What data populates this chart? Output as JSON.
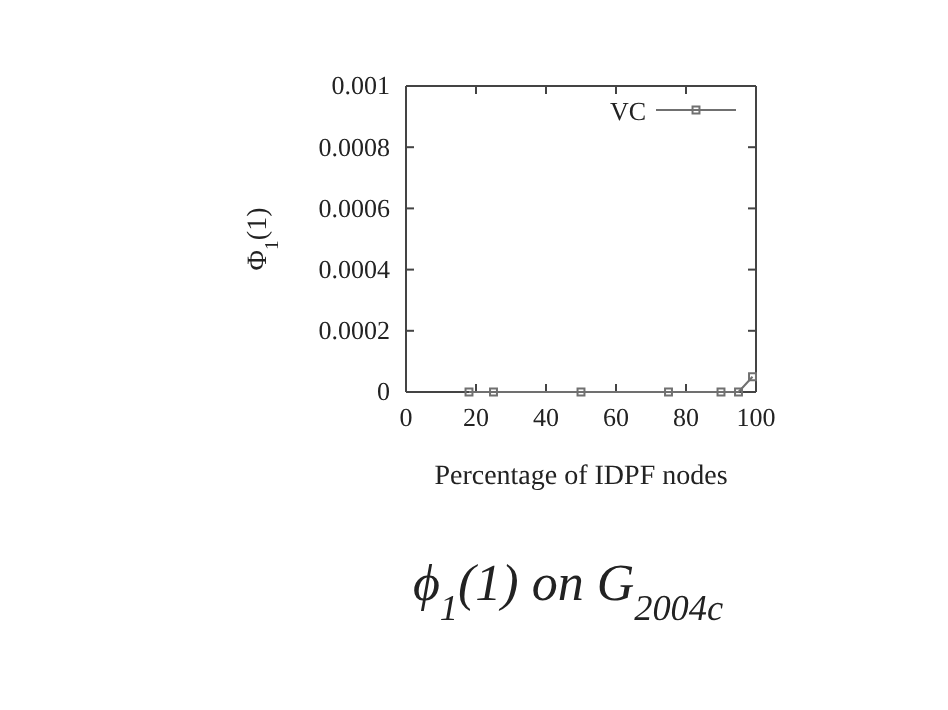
{
  "chart_data": {
    "type": "line",
    "title": "ϕ$_{1}$(1) on G$_{2004c}$",
    "xlabel": "Percentage of IDPF nodes",
    "ylabel": "Φ$_{1}$(1)",
    "x": [
      18,
      25,
      50,
      75,
      90,
      95,
      99
    ],
    "series": [
      {
        "name": "VC",
        "color": "#707070",
        "values": [
          0,
          0,
          0,
          0,
          0,
          0,
          5e-05
        ]
      }
    ],
    "xlim": [
      0,
      100
    ],
    "xticks": [
      0,
      20,
      40,
      60,
      80,
      100
    ],
    "ylim": [
      0,
      0.001
    ],
    "yticks": [
      0,
      0.0002,
      0.0004,
      0.0006,
      0.0008,
      0.001
    ],
    "grid": false,
    "legend": "top right",
    "marker": "square",
    "line_style": "solid"
  }
}
